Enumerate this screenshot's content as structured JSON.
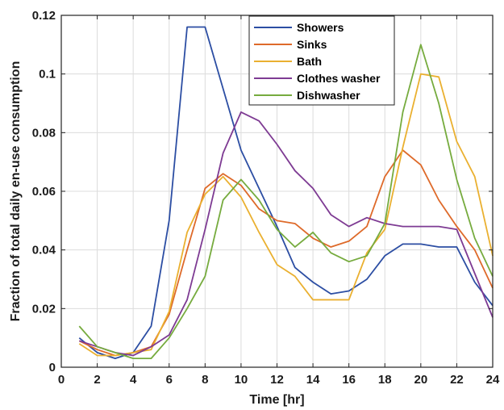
{
  "chart_data": {
    "type": "line",
    "xlabel": "Time [hr]",
    "ylabel": "Fraction of total daily en-use consumption",
    "xlim": [
      0,
      24
    ],
    "ylim": [
      0,
      0.12
    ],
    "xticks": [
      0,
      2,
      4,
      6,
      8,
      10,
      12,
      14,
      16,
      18,
      20,
      22,
      24
    ],
    "yticks": [
      0,
      0.02,
      0.04,
      0.06,
      0.08,
      0.1,
      0.12
    ],
    "xtick_labels": [
      "0",
      "2",
      "4",
      "6",
      "8",
      "10",
      "12",
      "14",
      "16",
      "18",
      "20",
      "22",
      "24"
    ],
    "ytick_labels": [
      "0",
      "0.02",
      "0.04",
      "0.06",
      "0.08",
      "0.1",
      "0.12"
    ],
    "grid": true,
    "legend": "top-center",
    "x": [
      1,
      2,
      3,
      4,
      5,
      6,
      7,
      8,
      9,
      10,
      11,
      12,
      13,
      14,
      15,
      16,
      17,
      18,
      19,
      20,
      21,
      22,
      23,
      24
    ],
    "series": [
      {
        "name": "Showers",
        "color": "#2c4ea3",
        "values": [
          0.01,
          0.005,
          0.003,
          0.005,
          0.014,
          0.05,
          0.116,
          0.116,
          0.095,
          0.074,
          0.061,
          0.048,
          0.034,
          0.029,
          0.025,
          0.026,
          0.03,
          0.038,
          0.042,
          0.042,
          0.041,
          0.041,
          0.029,
          0.021
        ]
      },
      {
        "name": "Sinks",
        "color": "#de6a2a",
        "values": [
          0.009,
          0.006,
          0.004,
          0.005,
          0.007,
          0.018,
          0.04,
          0.061,
          0.066,
          0.062,
          0.054,
          0.05,
          0.049,
          0.044,
          0.041,
          0.043,
          0.048,
          0.065,
          0.074,
          0.069,
          0.057,
          0.048,
          0.04,
          0.027
        ]
      },
      {
        "name": "Bath",
        "color": "#eab030",
        "values": [
          0.008,
          0.004,
          0.004,
          0.005,
          0.006,
          0.019,
          0.046,
          0.059,
          0.065,
          0.058,
          0.046,
          0.035,
          0.031,
          0.023,
          0.023,
          0.023,
          0.039,
          0.047,
          0.075,
          0.1,
          0.099,
          0.077,
          0.065,
          0.038
        ]
      },
      {
        "name": "Clothes washer",
        "color": "#7e3b93",
        "values": [
          0.009,
          0.007,
          0.005,
          0.004,
          0.007,
          0.011,
          0.023,
          0.047,
          0.073,
          0.087,
          0.084,
          0.076,
          0.067,
          0.061,
          0.052,
          0.048,
          0.051,
          0.049,
          0.048,
          0.048,
          0.048,
          0.047,
          0.032,
          0.017
        ]
      },
      {
        "name": "Dishwasher",
        "color": "#76ab3e",
        "values": [
          0.014,
          0.007,
          0.005,
          0.003,
          0.003,
          0.01,
          0.02,
          0.031,
          0.057,
          0.064,
          0.057,
          0.047,
          0.041,
          0.046,
          0.039,
          0.036,
          0.038,
          0.049,
          0.087,
          0.11,
          0.09,
          0.064,
          0.044,
          0.031
        ]
      }
    ]
  }
}
